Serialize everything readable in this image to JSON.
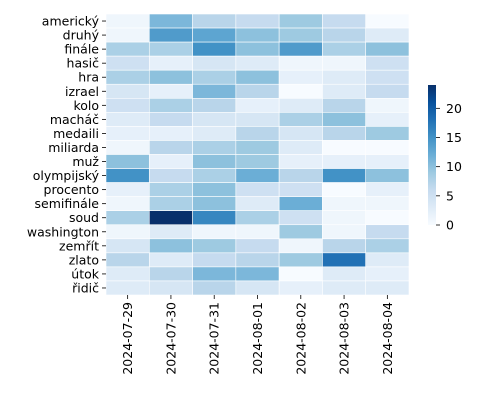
{
  "chart_data": {
    "type": "heatmap",
    "title": "",
    "xlabel": "",
    "ylabel": "",
    "x": [
      "2024-07-29",
      "2024-07-30",
      "2024-07-31",
      "2024-08-01",
      "2024-08-02",
      "2024-08-03",
      "2024-08-04"
    ],
    "y": [
      "americký",
      "druhý",
      "finále",
      "hasič",
      "hra",
      "izrael",
      "kolo",
      "macháč",
      "medaili",
      "miliarda",
      "muž",
      "olympijský",
      "procento",
      "semifinále",
      "soud",
      "washington",
      "zemřít",
      "zlato",
      "útok",
      "řidič"
    ],
    "values": [
      [
        1,
        11,
        7,
        6,
        9,
        6,
        0
      ],
      [
        1,
        14,
        13,
        10,
        9,
        7,
        3
      ],
      [
        8,
        8,
        15,
        10,
        14,
        8,
        10
      ],
      [
        5,
        2,
        4,
        3,
        1,
        1,
        5
      ],
      [
        8,
        10,
        8,
        10,
        2,
        3,
        5
      ],
      [
        4,
        2,
        11,
        7,
        0,
        3,
        6
      ],
      [
        5,
        8,
        7,
        2,
        3,
        7,
        1
      ],
      [
        3,
        6,
        4,
        4,
        8,
        10,
        2
      ],
      [
        2,
        2,
        3,
        7,
        4,
        7,
        9
      ],
      [
        1,
        7,
        8,
        9,
        3,
        0,
        0
      ],
      [
        10,
        2,
        10,
        9,
        2,
        2,
        2
      ],
      [
        15,
        6,
        8,
        12,
        7,
        15,
        10
      ],
      [
        2,
        8,
        10,
        5,
        5,
        0,
        2
      ],
      [
        1,
        8,
        10,
        3,
        12,
        1,
        1
      ],
      [
        8,
        24,
        16,
        8,
        5,
        1,
        0
      ],
      [
        1,
        3,
        1,
        1,
        9,
        1,
        6
      ],
      [
        4,
        10,
        9,
        6,
        1,
        7,
        8
      ],
      [
        7,
        3,
        6,
        7,
        9,
        18,
        3
      ],
      [
        3,
        7,
        11,
        11,
        0,
        3,
        2
      ],
      [
        3,
        4,
        7,
        4,
        2,
        3,
        3
      ]
    ],
    "vmin": 0,
    "vmax": 24,
    "colorbar_ticks": [
      0,
      5,
      10,
      15,
      20
    ],
    "colormap": [
      "#f7fbff",
      "#deebf7",
      "#c6dbef",
      "#9ecae1",
      "#6baed6",
      "#4292c6",
      "#2171b5",
      "#08519c",
      "#08306b"
    ],
    "cell_border_color": "#ffffff"
  }
}
